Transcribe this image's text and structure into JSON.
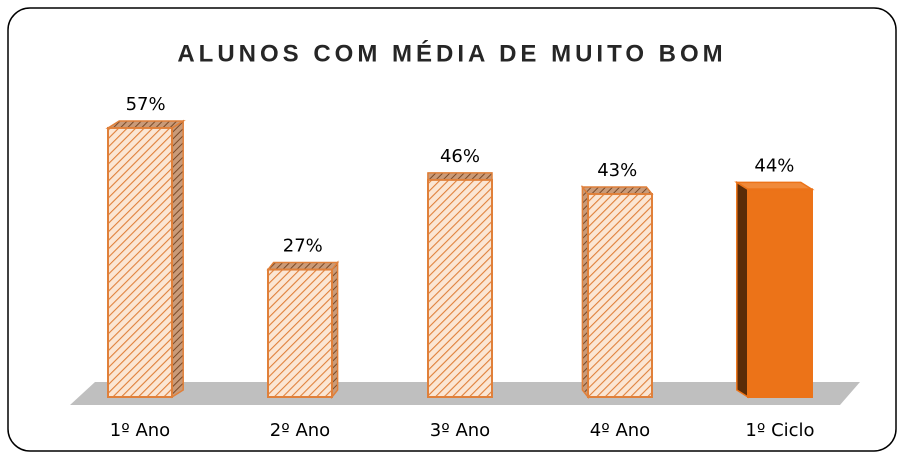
{
  "chart_data": {
    "type": "bar3d",
    "title": "ALUNOS COM MÉDIA DE MUITO BOM",
    "categories": [
      "1º Ano",
      "2º Ano",
      "3º Ano",
      "4º Ano",
      "1º Ciclo"
    ],
    "values": [
      57,
      27,
      46,
      43,
      44
    ],
    "value_labels": [
      "57%",
      "27%",
      "46%",
      "43%",
      "44%"
    ],
    "colors": [
      "#e0803a",
      "#e0803a",
      "#e0803a",
      "#e0803a",
      "#ec7318"
    ],
    "hatched": [
      true,
      true,
      true,
      true,
      false
    ]
  }
}
